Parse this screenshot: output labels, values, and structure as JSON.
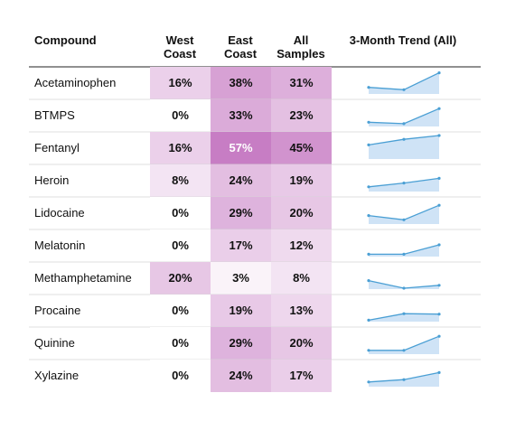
{
  "chart_data": {
    "type": "table",
    "columns": {
      "compound": "Compound",
      "west": [
        "West",
        "Coast"
      ],
      "east": [
        "East",
        "Coast"
      ],
      "all": [
        "All",
        "Samples"
      ],
      "trend": "3-Month Trend (All)"
    },
    "rows": [
      {
        "compound": "Acetaminophen",
        "west": "16%",
        "east": "38%",
        "all": "31%",
        "w": 16,
        "e": 38,
        "a": 31,
        "trend": [
          14,
          9,
          45
        ]
      },
      {
        "compound": "BTMPS",
        "west": "0%",
        "east": "33%",
        "all": "23%",
        "w": 0,
        "e": 33,
        "a": 23,
        "trend": [
          9,
          6,
          38
        ]
      },
      {
        "compound": "Fentanyl",
        "west": "16%",
        "east": "57%",
        "all": "45%",
        "w": 16,
        "e": 57,
        "a": 45,
        "trend": [
          30,
          42,
          50
        ]
      },
      {
        "compound": "Heroin",
        "west": "8%",
        "east": "24%",
        "all": "19%",
        "w": 8,
        "e": 24,
        "a": 19,
        "trend": [
          10,
          18,
          28
        ]
      },
      {
        "compound": "Lidocaine",
        "west": "0%",
        "east": "29%",
        "all": "20%",
        "w": 0,
        "e": 29,
        "a": 20,
        "trend": [
          18,
          9,
          40
        ]
      },
      {
        "compound": "Melatonin",
        "west": "0%",
        "east": "17%",
        "all": "12%",
        "w": 0,
        "e": 17,
        "a": 12,
        "trend": [
          5,
          5,
          25
        ]
      },
      {
        "compound": "Methamphetamine",
        "west": "20%",
        "east": "3%",
        "all": "8%",
        "w": 20,
        "e": 3,
        "a": 8,
        "trend": [
          18,
          2,
          8
        ]
      },
      {
        "compound": "Procaine",
        "west": "0%",
        "east": "19%",
        "all": "13%",
        "w": 0,
        "e": 19,
        "a": 13,
        "trend": [
          3,
          17,
          16
        ]
      },
      {
        "compound": "Quinine",
        "west": "0%",
        "east": "29%",
        "all": "20%",
        "w": 0,
        "e": 29,
        "a": 20,
        "trend": [
          8,
          8,
          38
        ]
      },
      {
        "compound": "Xylazine",
        "west": "0%",
        "east": "24%",
        "all": "17%",
        "w": 0,
        "e": 24,
        "a": 17,
        "trend": [
          10,
          15,
          30
        ]
      }
    ],
    "heatmap_color_max": "#c77dc4",
    "heatmap_color_min": "#ffffff",
    "sparkline_line_color": "#4a9fd4",
    "sparkline_fill_color": "#cfe3f6"
  }
}
